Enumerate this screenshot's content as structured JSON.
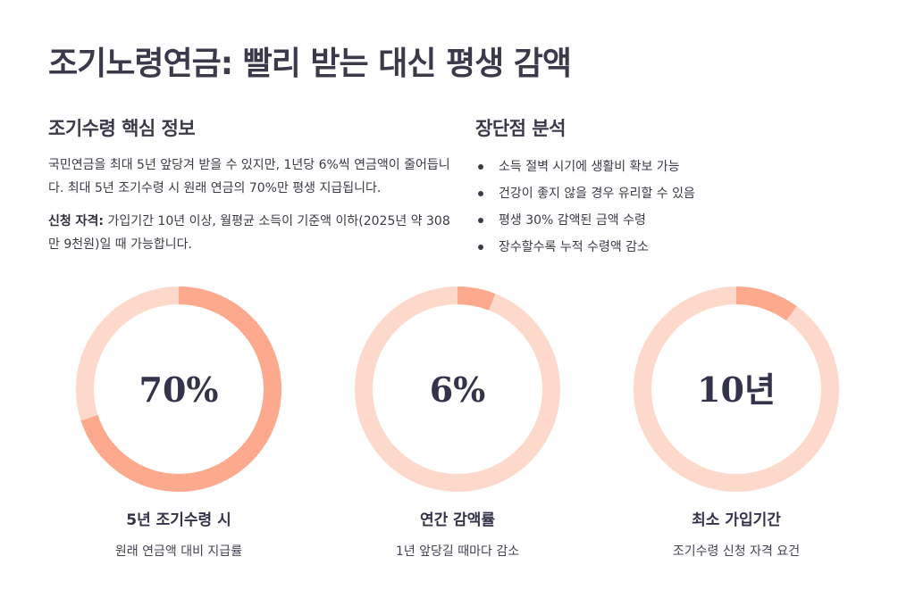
{
  "title": "조기노령연금: 빨리 받는 대신 평생 감액",
  "left": {
    "heading": "조기수령 핵심 정보",
    "para1": "국민연금을 최대 5년 앞당겨 받을 수 있지만, 1년당 6%씩 연금액이 줄어듭니다. 최대 5년 조기수령 시 원래 연금의 70%만 평생 지급됩니다.",
    "para2_label": "신청 자격:",
    "para2_text": " 가입기간 10년 이상, 월평균 소득이 기준액 이하(2025년 약 308만 9천원)일 때 가능합니다."
  },
  "right": {
    "heading": "장단점 분석",
    "items": [
      "소득 절벽 시기에 생활비 확보 가능",
      "건강이 좋지 않을 경우 유리할 수 있음",
      "평생 30% 감액된 금액 수령",
      "장수할수록 누적 수령액 감소"
    ]
  },
  "colors": {
    "ring_track": "#fdd9cb",
    "ring_fill": "#fda98d",
    "text_dark": "#33334a"
  },
  "stats": [
    {
      "value": "70%",
      "label": "5년 조기수령 시",
      "sub": "원래 연금액 대비 지급률",
      "fill_fraction": 0.7
    },
    {
      "value": "6%",
      "label": "연간 감액률",
      "sub": "1년 앞당길 때마다 감소",
      "fill_fraction": 0.06
    },
    {
      "value": "10년",
      "label": "최소 가입기간",
      "sub": "조기수령 신청 자격 요건",
      "fill_fraction": 0.1
    }
  ]
}
